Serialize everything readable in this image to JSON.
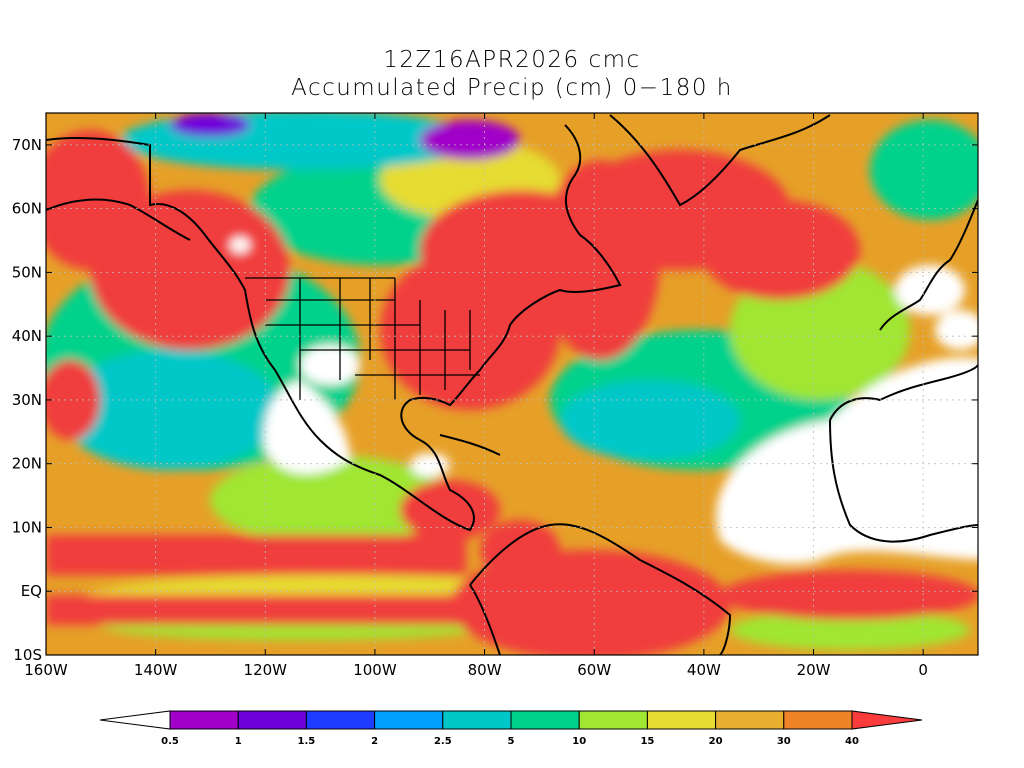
{
  "title": {
    "line1": "12Z16APR2026 cmc",
    "line2": "Accumulated Precip (cm) 0−180 h"
  },
  "map": {
    "lon_range": [
      -160,
      10
    ],
    "lat_range": [
      -10,
      75
    ],
    "lon_ticks": [
      {
        "value": -160,
        "label": "160W"
      },
      {
        "value": -140,
        "label": "140W"
      },
      {
        "value": -120,
        "label": "120W"
      },
      {
        "value": -100,
        "label": "100W"
      },
      {
        "value": -80,
        "label": "80W"
      },
      {
        "value": -60,
        "label": "60W"
      },
      {
        "value": -40,
        "label": "40W"
      },
      {
        "value": -20,
        "label": "20W"
      },
      {
        "value": 0,
        "label": "0"
      }
    ],
    "lat_ticks": [
      {
        "value": 70,
        "label": "70N"
      },
      {
        "value": 60,
        "label": "60N"
      },
      {
        "value": 50,
        "label": "50N"
      },
      {
        "value": 40,
        "label": "40N"
      },
      {
        "value": 30,
        "label": "30N"
      },
      {
        "value": 20,
        "label": "20N"
      },
      {
        "value": 10,
        "label": "10N"
      },
      {
        "value": 0,
        "label": "EQ"
      },
      {
        "value": -10,
        "label": "10S"
      }
    ],
    "grid": true,
    "field_colors": {
      "none": "#ffffff",
      "light": "#00d28c",
      "moderate": "#a0e632",
      "heavy": "#e6a028",
      "max": "#f03c3c"
    }
  },
  "colorbar": {
    "levels": [
      "0.5",
      "1",
      "1.5",
      "2",
      "2.5",
      "5",
      "10",
      "15",
      "20",
      "30",
      "40"
    ],
    "colors": [
      "#ffffff",
      "#a000c8",
      "#6e00dc",
      "#1e3cff",
      "#00a0ff",
      "#00c8c8",
      "#00d28c",
      "#a0e632",
      "#e6dc32",
      "#e6af2d",
      "#f08228",
      "#fa3c3c"
    ]
  }
}
